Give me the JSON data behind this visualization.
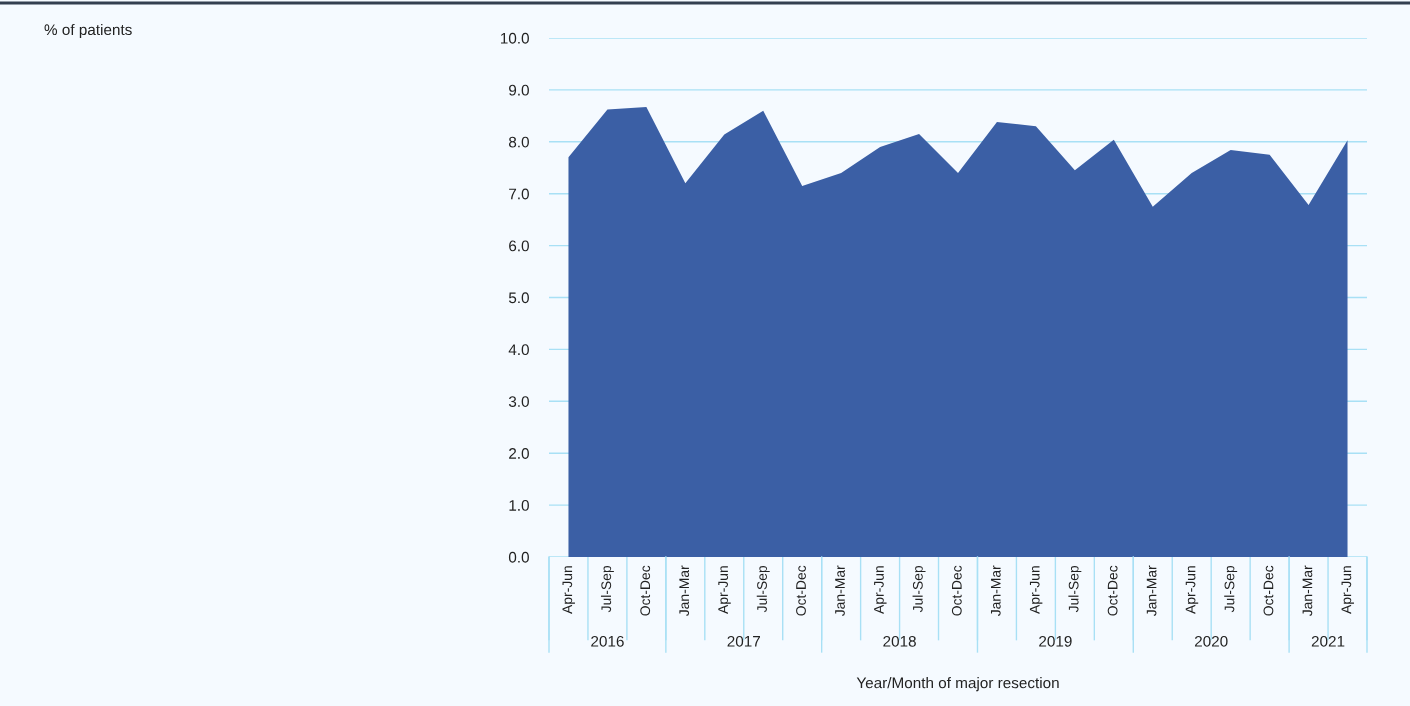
{
  "chart_data": {
    "type": "area",
    "xlabel": "Year/Month of major resection",
    "categories": [
      "Apr-Jun",
      "Jul-Sep",
      "Oct-Dec",
      "Jan-Mar",
      "Apr-Jun",
      "Jul-Sep",
      "Oct-Dec",
      "Jan-Mar",
      "Apr-Jun",
      "Jul-Sep",
      "Oct-Dec",
      "Jan-Mar",
      "Apr-Jun",
      "Jul-Sep",
      "Oct-Dec",
      "Jan-Mar",
      "Apr-Jun",
      "Jul-Sep",
      "Oct-Dec",
      "Jan-Mar",
      "Apr-Jun"
    ],
    "series": [
      {
        "color": "#3b5fa5",
        "values": [
          7.7,
          8.62,
          8.67,
          7.2,
          8.14,
          8.6,
          7.15,
          7.4,
          7.9,
          8.15,
          7.4,
          8.38,
          8.3,
          7.45,
          8.04,
          6.75,
          7.4,
          7.84,
          7.75,
          6.78,
          8.03
        ]
      }
    ],
    "ylim": [
      0,
      10
    ],
    "yticks": [
      {
        "value": 0,
        "label": "0.0"
      },
      {
        "value": 1,
        "label": "1.0"
      },
      {
        "value": 2,
        "label": "2.0"
      },
      {
        "value": 3,
        "label": "3.0"
      },
      {
        "value": 4,
        "label": "4.0"
      },
      {
        "value": 5,
        "label": "5.0"
      },
      {
        "value": 6,
        "label": "6.0"
      },
      {
        "value": 7,
        "label": "7.0"
      },
      {
        "value": 8,
        "label": "8.0"
      },
      {
        "value": 9,
        "label": "9.0"
      },
      {
        "value": 10,
        "label": "10.0"
      }
    ],
    "grid": "y",
    "annotations": [
      "% of patients",
      "2016",
      "2017",
      "2018",
      "2019",
      "2020",
      "2021"
    ]
  }
}
